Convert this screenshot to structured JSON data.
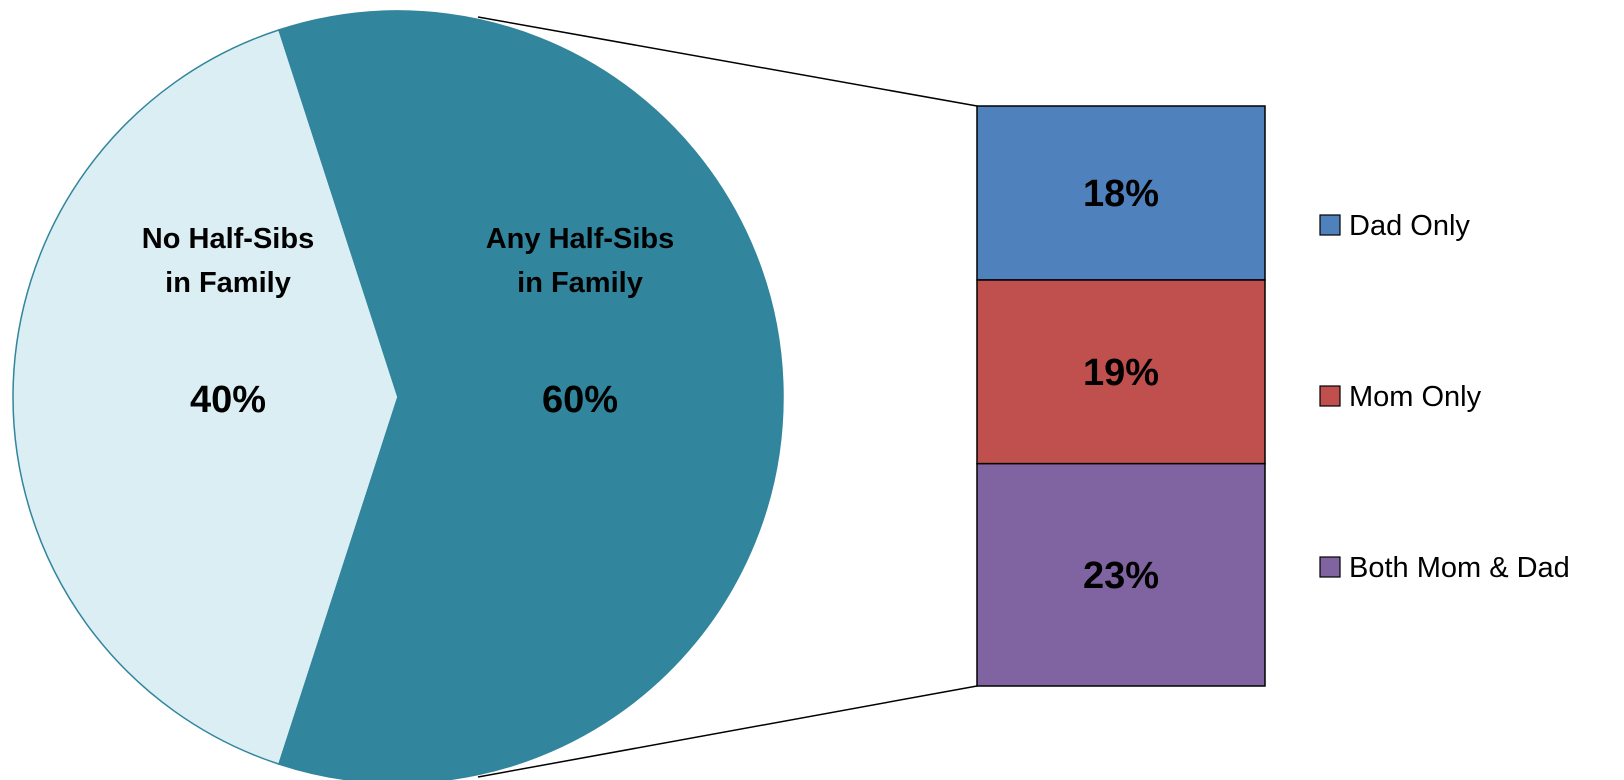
{
  "chart_data": [
    {
      "type": "pie",
      "categories": [
        "No Half-Sibs in Family",
        "Any Half-Sibs in Family"
      ],
      "label_lines": [
        [
          "No Half-Sibs",
          "in Family"
        ],
        [
          "Any Half-Sibs",
          "in Family"
        ]
      ],
      "values": [
        40,
        60
      ],
      "value_labels": [
        "40%",
        "60%"
      ],
      "colors": [
        "#dbeef4",
        "#31859c"
      ]
    },
    {
      "type": "bar",
      "stacked": true,
      "breakdown_of": "Any Half-Sibs in Family",
      "categories": [
        "Dad Only",
        "Mom Only",
        "Both Mom & Dad"
      ],
      "values": [
        18,
        19,
        23
      ],
      "value_labels": [
        "18%",
        "19%",
        "23%"
      ],
      "colors": [
        "#4f81bd",
        "#c0504d",
        "#8064a2"
      ],
      "legend": "right"
    }
  ]
}
